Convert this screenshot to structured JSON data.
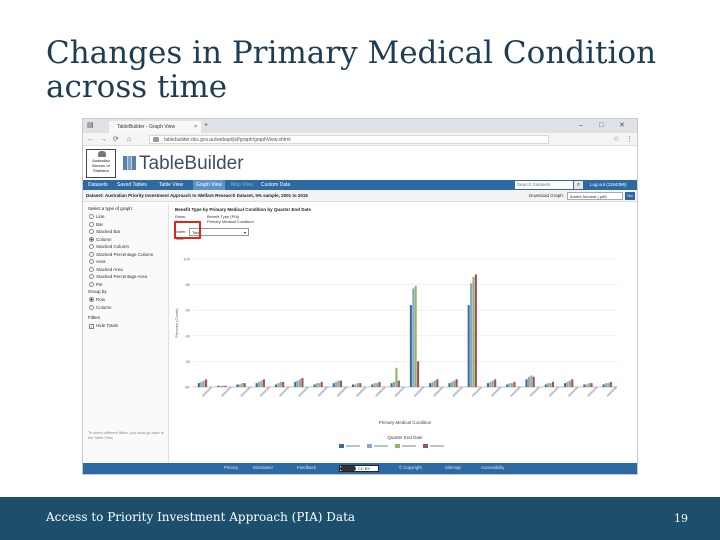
{
  "slide": {
    "title": "Changes in Primary Medical Condition across time",
    "footer_text": "Access to Priority Investment Approach (PIA) Data",
    "page_number": "19"
  },
  "browser": {
    "tab_title": "TableBuilder - Graph View",
    "tab_close": "×",
    "new_tab": "+",
    "minimize": "–",
    "maximize": "□",
    "close": "✕",
    "url": "tablebuilder.dss.gov.au/webapi/jsf/graph/graphView.xhtml",
    "back_icon": "←",
    "forward_icon": "→",
    "reload_icon": "⟳",
    "home_icon": "⌂"
  },
  "site": {
    "abs_logo": "Australian Bureau of Statistics",
    "tablebuilder_logo": "TableBuilder"
  },
  "nav": {
    "items": [
      "Datasets",
      "Saved Tables",
      "Table View",
      "Graph View",
      "Map View",
      "Custom Data"
    ],
    "active": "Graph View",
    "search_placeholder": "Search Datasets",
    "search_icon": "⌕",
    "logout": "Log out (1184396)"
  },
  "dataset": {
    "label": "Dataset: Australian Priority Investment Approach to Welfare Research Dataset, 5% sample, 2001 to 2015",
    "download_label": "Download Graph:",
    "download_value": "Adobe Acrobat (.pdf)",
    "go": "Go"
  },
  "left_panel": {
    "graph_type_heading": "Select a type of graph:",
    "graph_types": [
      {
        "label": "Line",
        "selected": false
      },
      {
        "label": "Bar",
        "selected": false
      },
      {
        "label": "Stacked Bar",
        "selected": false
      },
      {
        "label": "Column",
        "selected": true
      },
      {
        "label": "Stacked Column",
        "selected": false
      },
      {
        "label": "Stacked Percentage Column",
        "selected": false
      },
      {
        "label": "Area",
        "selected": false
      },
      {
        "label": "Stacked Area",
        "selected": false
      },
      {
        "label": "Stacked Percentage Area",
        "selected": false
      },
      {
        "label": "Pie",
        "selected": false
      }
    ],
    "group_by_heading": "Group by",
    "group_by": [
      {
        "label": "Row",
        "selected": true
      },
      {
        "label": "Column",
        "selected": false
      }
    ],
    "filters_heading": "Filters",
    "filters": [
      {
        "label": "Hide Totals",
        "checked": true
      }
    ],
    "note": "To select different filters, you must go back to the Table View."
  },
  "chart_controls": {
    "title": "Benefit Type by Primary Medical Condition by Quarter End Date",
    "row_label": "Rows:",
    "row_value": "Benefit Type (PIA)",
    "column_label": "Columns:",
    "column_value": "Primary Medical Condition",
    "wafer_label": "Wafer:",
    "wafer_value": "Total",
    "total_label": "Total"
  },
  "chart_data": {
    "type": "bar",
    "ylabel": "Persons (Count)",
    "xlabel": "Primary Medical Condition",
    "ylim": [
      0,
      100
    ],
    "yticks": [
      "0K",
      "20",
      "40",
      "60",
      "80",
      "100"
    ],
    "legend_title": "Quarter End Date",
    "legend_position": "bottom",
    "categories": [
      "c1",
      "c2",
      "c3",
      "c4",
      "c5",
      "c6",
      "c7",
      "c8",
      "c9",
      "c10",
      "c11",
      "c12",
      "c13",
      "c14",
      "c15",
      "c16",
      "c17",
      "c18",
      "c19",
      "c20",
      "c21",
      "c22"
    ],
    "series": [
      {
        "color": "#3c6aa3",
        "values": [
          3,
          1,
          2,
          3,
          2,
          4,
          2,
          3,
          2,
          2,
          3,
          64,
          3,
          3,
          64,
          3,
          2,
          6,
          2,
          3,
          2,
          2
        ]
      },
      {
        "color": "#86a8d0",
        "values": [
          4,
          1,
          2,
          4,
          3,
          5,
          3,
          4,
          2,
          3,
          4,
          77,
          4,
          4,
          81,
          4,
          3,
          8,
          3,
          4,
          2,
          3
        ]
      },
      {
        "color": "#8dba5a",
        "values": [
          5,
          1,
          3,
          5,
          4,
          6,
          3,
          5,
          3,
          3,
          15,
          79,
          5,
          5,
          86,
          5,
          3,
          9,
          3,
          5,
          3,
          3
        ]
      },
      {
        "color": "#a64d6e",
        "values": [
          6,
          1,
          3,
          6,
          4,
          7,
          4,
          5,
          3,
          4,
          5,
          20,
          6,
          6,
          88,
          6,
          4,
          8,
          4,
          6,
          3,
          4
        ]
      }
    ]
  },
  "footer_links": [
    "Privacy",
    "Disclaimer",
    "Feedback",
    "CC BY",
    "© Copyright",
    "Sitemap",
    "Accessibility"
  ]
}
